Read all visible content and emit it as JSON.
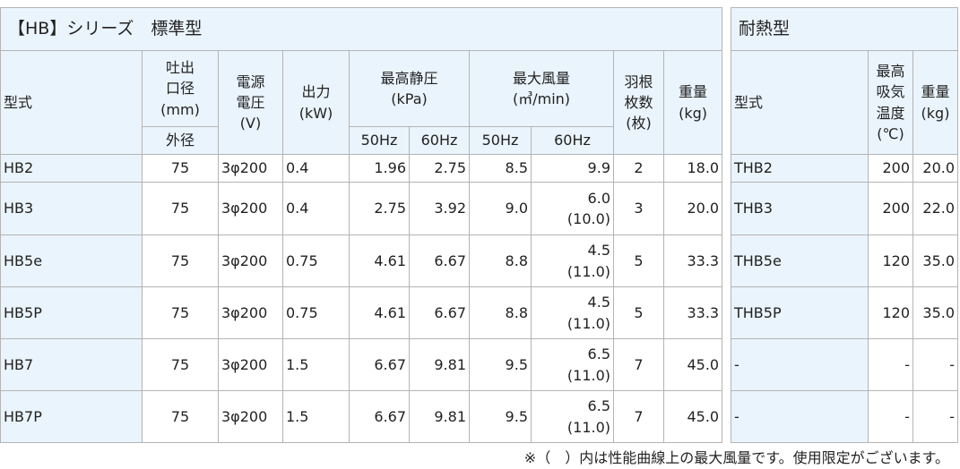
{
  "left": {
    "title": "【HB】シリーズ　標準型",
    "header_top": [
      "型式",
      "吐出\n口径\n(mm)",
      "電源\n電圧\n(V)",
      "出力\n(kW)",
      "最高静圧\n(kPa)",
      "最大風量\n(㎥/min)",
      "羽根\n枚数\n(枚)",
      "重量\n(kg)"
    ],
    "header_sub": [
      "外径",
      "50Hz",
      "60Hz",
      "50Hz",
      "60Hz"
    ],
    "rows": [
      [
        "HB2",
        "75",
        "3φ200",
        "0.4",
        "1.96",
        "2.75",
        "8.5",
        "9.9",
        "2",
        "18.0"
      ],
      [
        "HB3",
        "75",
        "3φ200",
        "0.4",
        "2.75",
        "3.92",
        "9.0",
        "6.0\n(10.0)",
        "3",
        "20.0"
      ],
      [
        "HB5e",
        "75",
        "3φ200",
        "0.75",
        "4.61",
        "6.67",
        "8.8",
        "4.5\n(11.0)",
        "5",
        "33.3"
      ],
      [
        "HB5P",
        "75",
        "3φ200",
        "0.75",
        "4.61",
        "6.67",
        "8.8",
        "4.5\n(11.0)",
        "5",
        "33.3"
      ],
      [
        "HB7",
        "75",
        "3φ200",
        "1.5",
        "6.67",
        "9.81",
        "9.5",
        "6.5\n(11.0)",
        "7",
        "45.0"
      ],
      [
        "HB7P",
        "75",
        "3φ200",
        "1.5",
        "6.67",
        "9.81",
        "9.5",
        "6.5\n(11.0)",
        "7",
        "45.0"
      ]
    ]
  },
  "right": {
    "title": "耐熱型",
    "header_top": [
      "型式",
      "最高\n吸気\n温度\n(℃)",
      "重量\n(kg)"
    ],
    "rows": [
      [
        "THB2",
        "200",
        "20.0"
      ],
      [
        "THB3",
        "200",
        "22.0"
      ],
      [
        "THB5e",
        "120",
        "35.0"
      ],
      [
        "THB5P",
        "120",
        "35.0"
      ],
      [
        "-",
        "-",
        "-"
      ],
      [
        "-",
        "-",
        "-"
      ]
    ]
  },
  "note": "※（　）内は性能曲線上の最大風量です。使用限定がございます。"
}
